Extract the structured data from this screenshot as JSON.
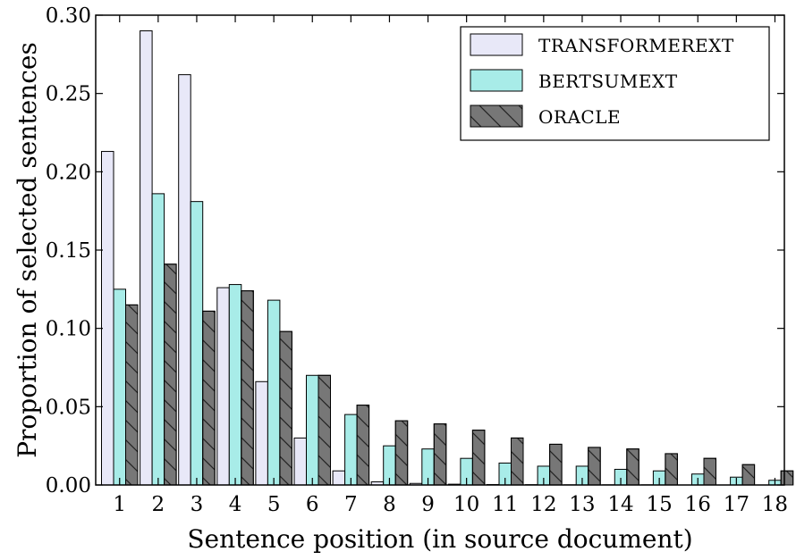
{
  "chart_data": {
    "type": "bar",
    "xlabel": "Sentence position (in source document)",
    "ylabel": "Proportion of selected sentences",
    "ylim": [
      0,
      0.3
    ],
    "yticks": [
      "0.00",
      "0.05",
      "0.10",
      "0.15",
      "0.20",
      "0.25",
      "0.30"
    ],
    "categories": [
      "1",
      "2",
      "3",
      "4",
      "5",
      "6",
      "7",
      "8",
      "9",
      "10",
      "11",
      "12",
      "13",
      "14",
      "15",
      "16",
      "17",
      "18"
    ],
    "legend_position": "top-right",
    "grid": false,
    "series": [
      {
        "name": "TransformerExt",
        "legend_label": "TRANSFORMEREXT",
        "color": "#e8e8f8",
        "hatch": "none",
        "values": [
          0.213,
          0.29,
          0.262,
          0.126,
          0.066,
          0.03,
          0.009,
          0.002,
          0.001,
          0.0005,
          0.0003,
          0.0002,
          0.0001,
          0.0001,
          0.0001,
          0.0,
          0.0,
          0.0
        ]
      },
      {
        "name": "BertSumExt",
        "legend_label": "BERTSUMEXT",
        "color": "#a8ece8",
        "hatch": "none",
        "values": [
          0.125,
          0.186,
          0.181,
          0.128,
          0.118,
          0.07,
          0.045,
          0.025,
          0.023,
          0.017,
          0.014,
          0.012,
          0.012,
          0.01,
          0.009,
          0.007,
          0.005,
          0.003
        ]
      },
      {
        "name": "Oracle",
        "legend_label": "ORACLE",
        "color": "#777777",
        "hatch": "diagonal",
        "values": [
          0.115,
          0.141,
          0.111,
          0.124,
          0.098,
          0.07,
          0.051,
          0.041,
          0.039,
          0.035,
          0.03,
          0.026,
          0.024,
          0.023,
          0.02,
          0.017,
          0.013,
          0.009
        ]
      }
    ]
  }
}
